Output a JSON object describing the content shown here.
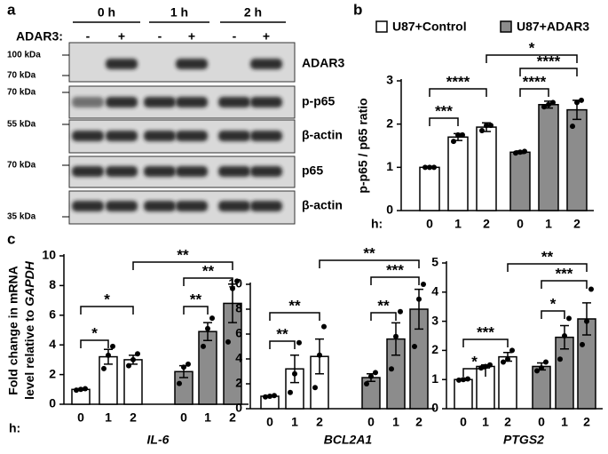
{
  "panel_labels": [
    "a",
    "b",
    "c"
  ],
  "blot": {
    "timepoints": [
      "0 h",
      "1 h",
      "2 h"
    ],
    "treatment_label": "ADAR3:",
    "lane_signs": [
      "-",
      "+",
      "-",
      "+",
      "-",
      "+"
    ],
    "markers": [
      "100 kDa",
      "70 kDa",
      "70 kDa",
      "55 kDa",
      "70 kDa",
      "35 kDa"
    ],
    "proteins": [
      "ADAR3",
      "p-p65",
      "β-actin",
      "p65",
      "β-actin"
    ]
  },
  "chart_data": [
    {
      "type": "bar",
      "ylabel": [
        "p-p65 / p65 ratio"
      ],
      "x_prefix": "h:",
      "categories": [
        "0",
        "1",
        "2"
      ],
      "ylim": [
        0,
        3
      ],
      "yticks": [
        0,
        1,
        2,
        3
      ],
      "series": [
        {
          "name": "U87+Control",
          "color": "#ffffff",
          "values": [
            1.0,
            1.7,
            1.93
          ],
          "errors": [
            0.02,
            0.08,
            0.1
          ],
          "points": [
            [
              1.0,
              1.0,
              1.0
            ],
            [
              1.6,
              1.75,
              1.75
            ],
            [
              1.85,
              1.97,
              1.97
            ]
          ]
        },
        {
          "name": "U87+ADAR3",
          "color": "#8c8c8c",
          "values": [
            1.35,
            2.45,
            2.33
          ],
          "errors": [
            0.03,
            0.08,
            0.22
          ],
          "points": [
            [
              1.33,
              1.35,
              1.37
            ],
            [
              2.4,
              2.45,
              2.5
            ],
            [
              1.95,
              2.5,
              2.55
            ]
          ]
        }
      ],
      "brackets": [
        "***",
        "****",
        "****",
        "****",
        "*"
      ]
    },
    {
      "type": "bar",
      "ylabel": [
        "Fold change in mRNA",
        "level relative to ",
        "GAPDH"
      ],
      "x_prefix": "h:",
      "xlabel": "IL-6",
      "categories": [
        "0",
        "1",
        "2"
      ],
      "ylim": [
        0,
        10
      ],
      "yticks": [
        0,
        2,
        4,
        6,
        8,
        10
      ],
      "series": [
        {
          "name": "U87+Control",
          "color": "#ffffff",
          "values": [
            1.0,
            3.2,
            3.0
          ],
          "errors": [
            0.05,
            0.5,
            0.3
          ],
          "points": [
            [
              0.95,
              1.0,
              1.05
            ],
            [
              2.4,
              3.3,
              3.9
            ],
            [
              2.6,
              3.0,
              3.4
            ]
          ]
        },
        {
          "name": "U87+ADAR3",
          "color": "#8c8c8c",
          "values": [
            2.2,
            4.9,
            6.8
          ],
          "errors": [
            0.4,
            0.6,
            1.3
          ],
          "points": [
            [
              1.4,
              2.5,
              2.7
            ],
            [
              3.9,
              5.1,
              5.8
            ],
            [
              4.2,
              7.8,
              8.3
            ]
          ]
        }
      ],
      "brackets": [
        "*",
        "*",
        "**",
        "**",
        "**"
      ]
    },
    {
      "type": "bar",
      "xlabel": "BCL2A1",
      "categories": [
        "0",
        "1",
        "2"
      ],
      "ylim": [
        0,
        10
      ],
      "yticks": [
        0,
        2,
        4,
        6,
        8,
        10
      ],
      "series": [
        {
          "name": "U87+Control",
          "color": "#ffffff",
          "values": [
            1.0,
            3.2,
            4.2
          ],
          "errors": [
            0.05,
            1.1,
            1.4
          ],
          "points": [
            [
              0.95,
              1.0,
              1.05
            ],
            [
              1.3,
              2.8,
              5.3
            ],
            [
              1.7,
              4.3,
              6.6
            ]
          ]
        },
        {
          "name": "U87+ADAR3",
          "color": "#8c8c8c",
          "values": [
            2.5,
            5.6,
            8.0
          ],
          "errors": [
            0.3,
            1.3,
            1.6
          ],
          "points": [
            [
              2.0,
              2.6,
              2.9
            ],
            [
              3.2,
              5.8,
              7.8
            ],
            [
              5.0,
              8.8,
              10.0
            ]
          ]
        }
      ],
      "brackets": [
        "**",
        "**",
        "**",
        "***",
        "**"
      ]
    },
    {
      "type": "bar",
      "xlabel": "PTGS2",
      "categories": [
        "0",
        "1",
        "2"
      ],
      "ylim": [
        0,
        5
      ],
      "yticks": [
        0,
        1,
        2,
        3,
        4,
        5
      ],
      "series": [
        {
          "name": "U87+Control",
          "color": "#ffffff",
          "values": [
            1.0,
            1.45,
            1.78
          ],
          "errors": [
            0.03,
            0.05,
            0.15
          ],
          "points": [
            [
              0.98,
              1.0,
              1.02
            ],
            [
              1.4,
              1.45,
              1.5
            ],
            [
              1.6,
              1.7,
              2.0
            ]
          ]
        },
        {
          "name": "U87+ADAR3",
          "color": "#8c8c8c",
          "values": [
            1.45,
            2.45,
            3.08
          ],
          "errors": [
            0.12,
            0.4,
            0.55
          ],
          "points": [
            [
              1.3,
              1.4,
              1.6
            ],
            [
              1.7,
              2.5,
              3.1
            ],
            [
              2.2,
              3.0,
              4.1
            ]
          ]
        }
      ],
      "brackets": [
        "*",
        "***",
        "*",
        "***",
        "**"
      ]
    }
  ]
}
